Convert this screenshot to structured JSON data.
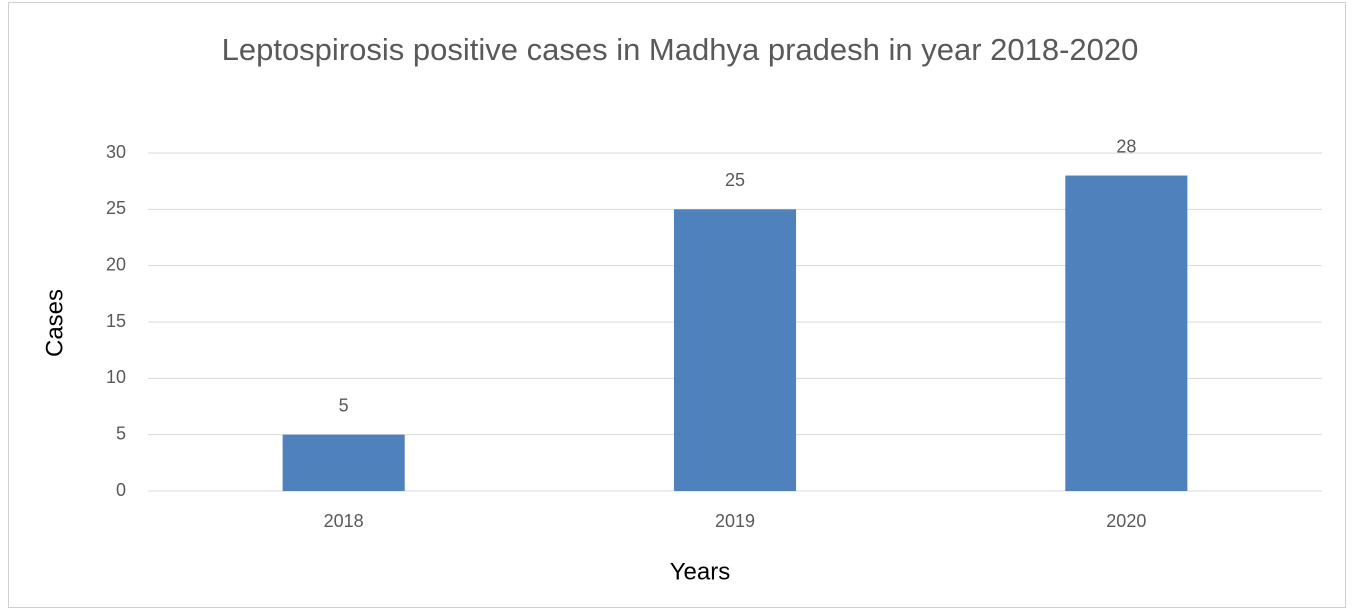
{
  "chart_data": {
    "type": "bar",
    "title": "Leptospirosis positive cases in Madhya pradesh in year 2018-2020",
    "x_label": "Years",
    "y_label": "Cases",
    "categories": [
      "2018",
      "2019",
      "2020"
    ],
    "values": [
      5,
      25,
      28
    ],
    "color": "#4f81bd",
    "ylim": [
      0,
      30
    ],
    "yticks": [
      0,
      5,
      10,
      15,
      20,
      25,
      30
    ],
    "grid": true,
    "data_labels": true
  }
}
